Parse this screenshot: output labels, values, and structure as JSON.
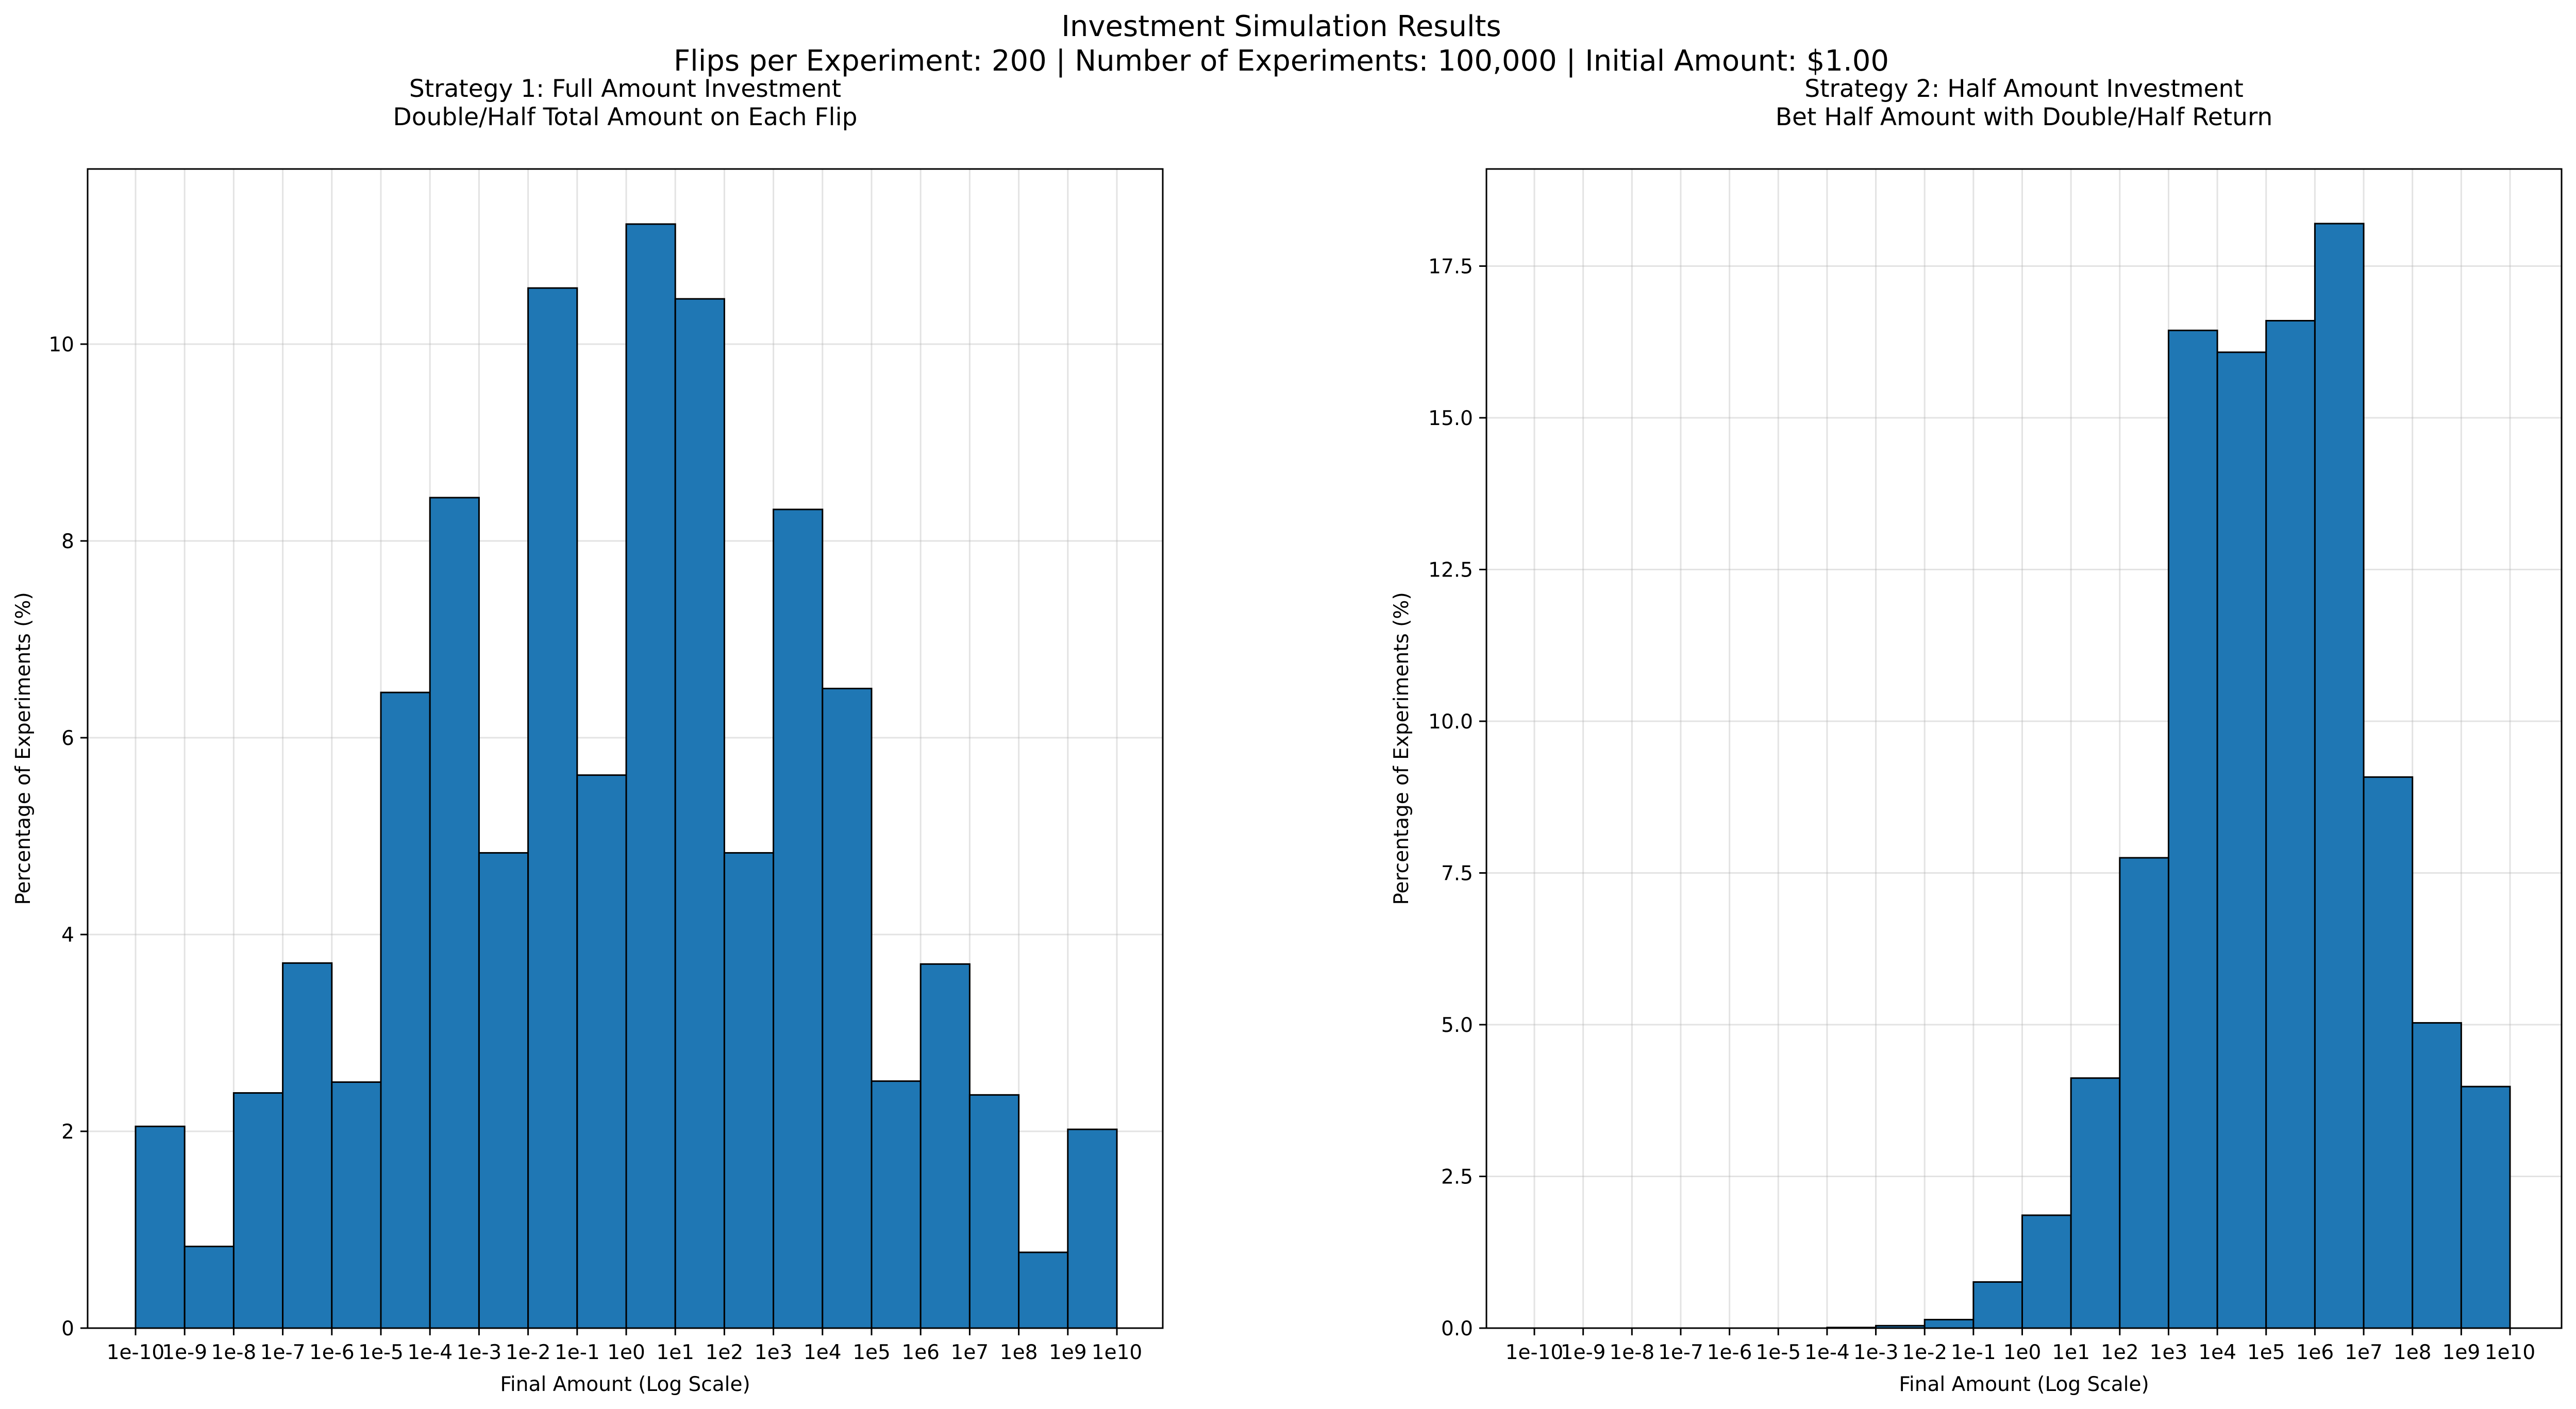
{
  "figure": {
    "title_line1": "Investment Simulation Results",
    "title_line2": "Flips per Experiment: 200 | Number of Experiments: 100,000 | Initial Amount: $1.00"
  },
  "chart_data": [
    {
      "type": "bar",
      "title_line1": "Strategy 1: Full Amount Investment",
      "title_line2": "Double/Half Total Amount on Each Flip",
      "xlabel": "Final Amount (Log Scale)",
      "ylabel": "Percentage of Experiments (%)",
      "x_scale": "log",
      "x_ticks": [
        "1e-10",
        "1e-9",
        "1e-8",
        "1e-7",
        "1e-6",
        "1e-5",
        "1e-4",
        "1e-3",
        "1e-2",
        "1e-1",
        "1e0",
        "1e1",
        "1e2",
        "1e3",
        "1e4",
        "1e5",
        "1e6",
        "1e7",
        "1e8",
        "1e9",
        "1e10"
      ],
      "bins": [
        "1e-10–1e-9",
        "1e-9–1e-8",
        "1e-8–1e-7",
        "1e-7–1e-6",
        "1e-6–1e-5",
        "1e-5–1e-4",
        "1e-4–1e-3",
        "1e-3–1e-2",
        "1e-2–1e-1",
        "1e-1–1e0",
        "1e0–1e1",
        "1e1–1e2",
        "1e2–1e3",
        "1e3–1e4",
        "1e4–1e5",
        "1e5–1e6",
        "1e6–1e7",
        "1e7–1e8",
        "1e8–1e9",
        "1e9–1e10"
      ],
      "values": [
        2.05,
        0.83,
        2.39,
        3.71,
        2.5,
        6.46,
        8.44,
        4.83,
        10.57,
        5.62,
        11.22,
        10.46,
        4.83,
        8.32,
        6.5,
        2.51,
        3.7,
        2.37,
        0.77,
        2.02
      ],
      "y_ticks": [
        "0",
        "2",
        "4",
        "6",
        "8",
        "10"
      ],
      "ylim": [
        0,
        11.78
      ],
      "grid": true,
      "color": "#1f77b4",
      "edge_color": "#000000"
    },
    {
      "type": "bar",
      "title_line1": "Strategy 2: Half Amount Investment",
      "title_line2": "Bet Half Amount with Double/Half Return",
      "xlabel": "Final Amount (Log Scale)",
      "ylabel": "Percentage of Experiments (%)",
      "x_scale": "log",
      "x_ticks": [
        "1e-10",
        "1e-9",
        "1e-8",
        "1e-7",
        "1e-6",
        "1e-5",
        "1e-4",
        "1e-3",
        "1e-2",
        "1e-1",
        "1e0",
        "1e1",
        "1e2",
        "1e3",
        "1e4",
        "1e5",
        "1e6",
        "1e7",
        "1e8",
        "1e9",
        "1e10"
      ],
      "bins": [
        "1e-10–1e-9",
        "1e-9–1e-8",
        "1e-8–1e-7",
        "1e-7–1e-6",
        "1e-6–1e-5",
        "1e-5–1e-4",
        "1e-4–1e-3",
        "1e-3–1e-2",
        "1e-2–1e-1",
        "1e-1–1e0",
        "1e0–1e1",
        "1e1–1e2",
        "1e2–1e3",
        "1e3–1e4",
        "1e4–1e5",
        "1e5–1e6",
        "1e6–1e7",
        "1e7–1e8",
        "1e8–1e9",
        "1e9–1e10"
      ],
      "values": [
        0,
        0,
        0,
        0,
        0,
        0,
        0.01,
        0.04,
        0.14,
        0.76,
        1.86,
        4.12,
        7.75,
        16.44,
        16.08,
        16.6,
        18.2,
        9.08,
        5.03,
        3.98
      ],
      "y_ticks": [
        "0.0",
        "2.5",
        "5.0",
        "7.5",
        "10.0",
        "12.5",
        "15.0",
        "17.5"
      ],
      "ylim": [
        0,
        19.1
      ],
      "grid": true,
      "color": "#1f77b4",
      "edge_color": "#000000"
    }
  ]
}
